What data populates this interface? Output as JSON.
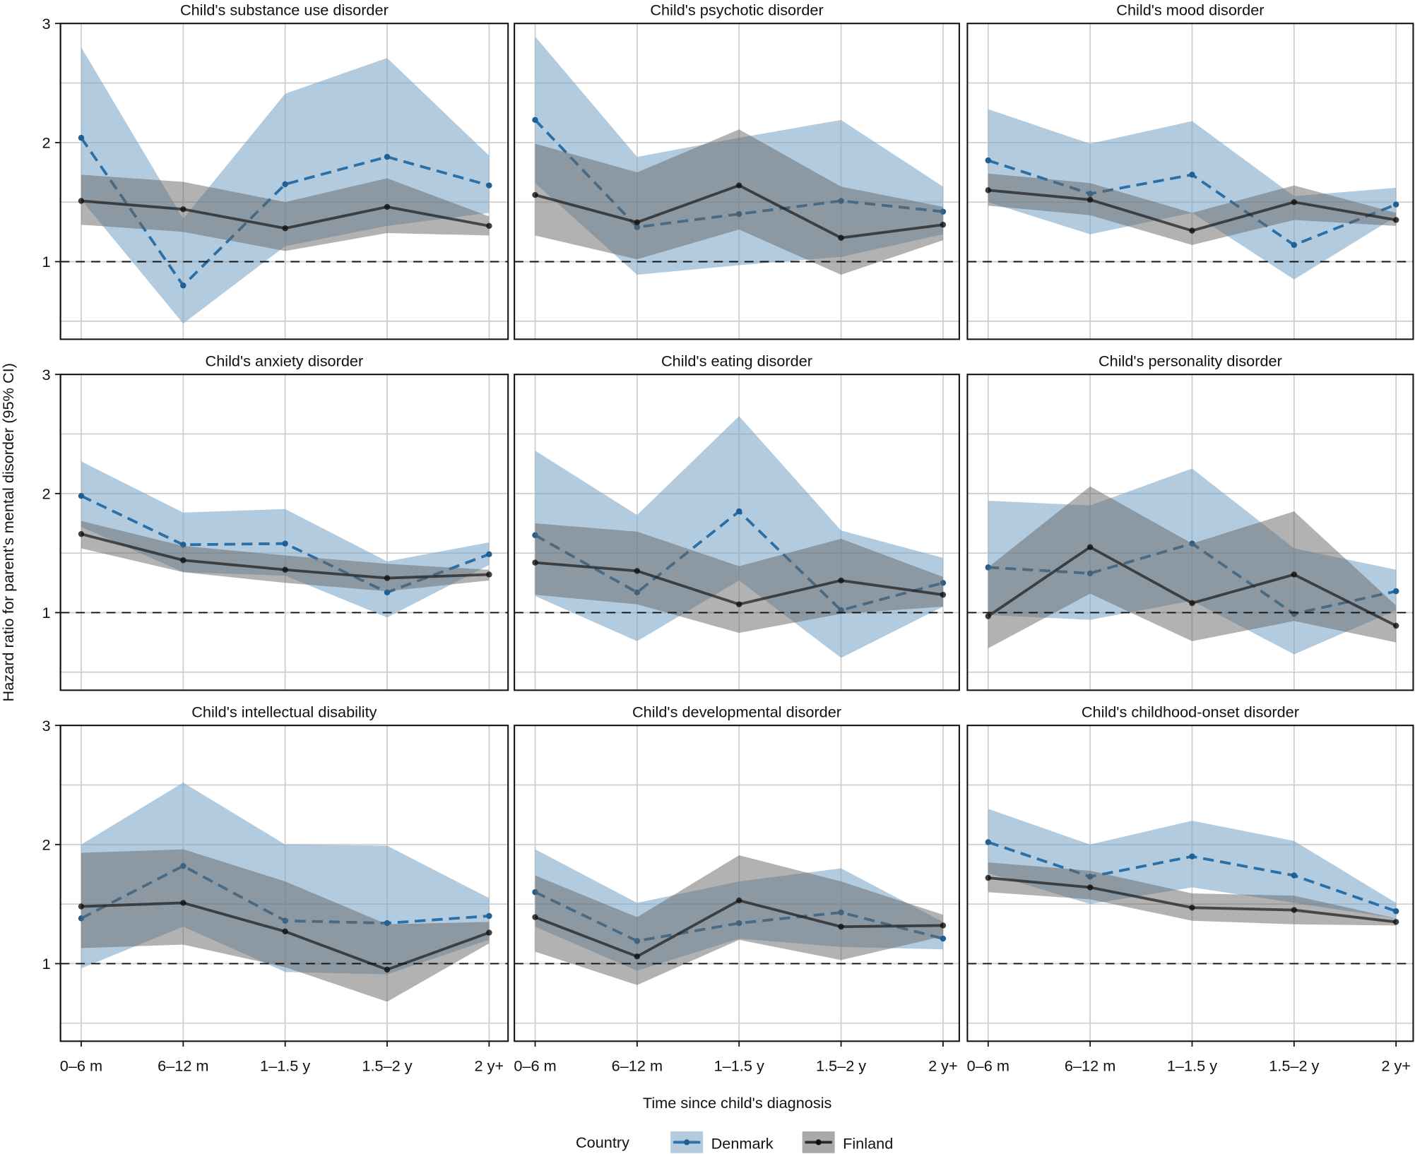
{
  "chart_data": {
    "type": "line",
    "xlabel": "Time since child's diagnosis",
    "ylabel": "Hazard ratio for parent's  mental disorder (95% CI)",
    "categories": [
      "0–6 m",
      "6–12 m",
      "1–1.5 y",
      "1.5–2 y",
      "2 y+"
    ],
    "ylim": [
      0.35,
      3
    ],
    "yticks": [
      1,
      2,
      3
    ],
    "ygrid_minor": [
      0.5,
      1.5,
      2.5
    ],
    "reference_line": 1,
    "grid": true,
    "legend": {
      "title": "Country",
      "position": "bottom",
      "entries": [
        {
          "name": "Denmark",
          "color": "#2a6fa5",
          "ribbon": "#b3cbdd",
          "style": "dashed"
        },
        {
          "name": "Finland",
          "color": "#2b2b2b",
          "ribbon": "#a9a9a9",
          "style": "solid"
        }
      ]
    },
    "panels": [
      {
        "title": "Child's substance use disorder",
        "series": [
          {
            "name": "Denmark",
            "values": [
              2.04,
              0.8,
              1.65,
              1.88,
              1.64
            ],
            "lower": [
              1.52,
              0.48,
              1.13,
              1.3,
              1.41
            ],
            "upper": [
              2.8,
              1.36,
              2.41,
              2.71,
              1.89
            ]
          },
          {
            "name": "Finland",
            "values": [
              1.51,
              1.44,
              1.28,
              1.46,
              1.3
            ],
            "lower": [
              1.31,
              1.25,
              1.09,
              1.24,
              1.22
            ],
            "upper": [
              1.73,
              1.67,
              1.5,
              1.7,
              1.38
            ]
          }
        ]
      },
      {
        "title": "Child's psychotic disorder",
        "series": [
          {
            "name": "Denmark",
            "values": [
              2.19,
              1.29,
              1.4,
              1.51,
              1.42
            ],
            "lower": [
              1.66,
              0.89,
              0.97,
              1.04,
              1.23
            ],
            "upper": [
              2.89,
              1.88,
              2.04,
              2.19,
              1.63
            ]
          },
          {
            "name": "Finland",
            "values": [
              1.56,
              1.33,
              1.64,
              1.2,
              1.31
            ],
            "lower": [
              1.22,
              1.02,
              1.27,
              0.89,
              1.18
            ],
            "upper": [
              1.99,
              1.75,
              2.11,
              1.63,
              1.46
            ]
          }
        ]
      },
      {
        "title": "Child's  mood disorder",
        "series": [
          {
            "name": "Denmark",
            "values": [
              1.85,
              1.57,
              1.73,
              1.14,
              1.48
            ],
            "lower": [
              1.5,
              1.23,
              1.41,
              0.85,
              1.38
            ],
            "upper": [
              2.28,
              1.99,
              2.18,
              1.55,
              1.62
            ]
          },
          {
            "name": "Finland",
            "values": [
              1.6,
              1.52,
              1.26,
              1.5,
              1.35
            ],
            "lower": [
              1.47,
              1.39,
              1.14,
              1.35,
              1.3
            ],
            "upper": [
              1.74,
              1.66,
              1.41,
              1.64,
              1.41
            ]
          }
        ]
      },
      {
        "title": "Child's anxiety disorder",
        "series": [
          {
            "name": "Denmark",
            "values": [
              1.98,
              1.57,
              1.58,
              1.17,
              1.49
            ],
            "lower": [
              1.72,
              1.34,
              1.31,
              0.96,
              1.4
            ],
            "upper": [
              2.27,
              1.84,
              1.87,
              1.43,
              1.59
            ]
          },
          {
            "name": "Finland",
            "values": [
              1.66,
              1.44,
              1.36,
              1.29,
              1.32
            ],
            "lower": [
              1.54,
              1.34,
              1.25,
              1.18,
              1.27
            ],
            "upper": [
              1.77,
              1.56,
              1.48,
              1.41,
              1.36
            ]
          }
        ]
      },
      {
        "title": "Child's eating disorder",
        "series": [
          {
            "name": "Denmark",
            "values": [
              1.65,
              1.17,
              1.85,
              1.02,
              1.25
            ],
            "lower": [
              1.14,
              0.76,
              1.27,
              0.62,
              1.05
            ],
            "upper": [
              2.36,
              1.82,
              2.65,
              1.69,
              1.46
            ]
          },
          {
            "name": "Finland",
            "values": [
              1.42,
              1.35,
              1.07,
              1.27,
              1.15
            ],
            "lower": [
              1.15,
              1.07,
              0.83,
              0.99,
              1.05
            ],
            "upper": [
              1.75,
              1.68,
              1.39,
              1.62,
              1.3
            ]
          }
        ]
      },
      {
        "title": "Child's personality disorder",
        "series": [
          {
            "name": "Denmark",
            "values": [
              1.38,
              1.33,
              1.58,
              0.99,
              1.18
            ],
            "lower": [
              0.98,
              0.94,
              1.1,
              0.65,
              1.02
            ],
            "upper": [
              1.94,
              1.9,
              2.21,
              1.54,
              1.36
            ]
          },
          {
            "name": "Finland",
            "values": [
              0.97,
              1.55,
              1.08,
              1.32,
              0.89
            ],
            "lower": [
              0.7,
              1.16,
              0.76,
              0.93,
              0.75
            ],
            "upper": [
              1.38,
              2.06,
              1.58,
              1.85,
              1.06
            ]
          }
        ]
      },
      {
        "title": "Child's intellectual disability",
        "series": [
          {
            "name": "Denmark",
            "values": [
              1.38,
              1.82,
              1.36,
              1.34,
              1.4
            ],
            "lower": [
              0.96,
              1.31,
              0.93,
              0.91,
              1.2
            ],
            "upper": [
              2.0,
              2.52,
              2.0,
              1.99,
              1.55
            ]
          },
          {
            "name": "Finland",
            "values": [
              1.48,
              1.51,
              1.27,
              0.95,
              1.26
            ],
            "lower": [
              1.13,
              1.16,
              0.97,
              0.68,
              1.17
            ],
            "upper": [
              1.93,
              1.96,
              1.69,
              1.33,
              1.35
            ]
          }
        ]
      },
      {
        "title": "Child's developmental disorder",
        "series": [
          {
            "name": "Denmark",
            "values": [
              1.6,
              1.19,
              1.34,
              1.43,
              1.21
            ],
            "lower": [
              1.31,
              0.94,
              1.21,
              1.14,
              1.12
            ],
            "upper": [
              1.96,
              1.51,
              1.69,
              1.8,
              1.35
            ]
          },
          {
            "name": "Finland",
            "values": [
              1.39,
              1.06,
              1.53,
              1.31,
              1.32
            ],
            "lower": [
              1.1,
              0.82,
              1.2,
              1.03,
              1.23
            ],
            "upper": [
              1.74,
              1.39,
              1.91,
              1.69,
              1.41
            ]
          }
        ]
      },
      {
        "title": "Child's childhood-onset disorder",
        "series": [
          {
            "name": "Denmark",
            "values": [
              2.02,
              1.73,
              1.9,
              1.74,
              1.44
            ],
            "lower": [
              1.76,
              1.5,
              1.64,
              1.51,
              1.38
            ],
            "upper": [
              2.3,
              2.0,
              2.2,
              2.03,
              1.51
            ]
          },
          {
            "name": "Finland",
            "values": [
              1.72,
              1.64,
              1.47,
              1.45,
              1.35
            ],
            "lower": [
              1.6,
              1.54,
              1.36,
              1.33,
              1.32
            ],
            "upper": [
              1.85,
              1.78,
              1.59,
              1.57,
              1.38
            ]
          }
        ]
      }
    ]
  }
}
